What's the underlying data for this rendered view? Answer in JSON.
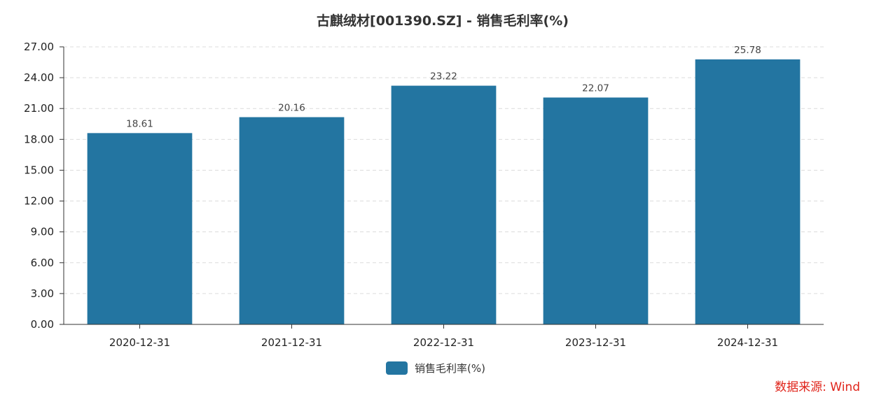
{
  "chart_data": {
    "type": "bar",
    "title": "古麒绒材[001390.SZ] - 销售毛利率(%)",
    "categories": [
      "2020-12-31",
      "2021-12-31",
      "2022-12-31",
      "2023-12-31",
      "2024-12-31"
    ],
    "series": [
      {
        "name": "销售毛利率(%)",
        "values": [
          18.61,
          20.16,
          23.22,
          22.07,
          25.78
        ],
        "color": "#2375a1"
      }
    ],
    "data_labels": [
      "18.61",
      "20.16",
      "23.22",
      "22.07",
      "25.78"
    ],
    "ylim": [
      0,
      27
    ],
    "yticks": [
      0,
      3,
      6,
      9,
      12,
      15,
      18,
      21,
      24,
      27
    ],
    "ytick_labels": [
      "0.00",
      "3.00",
      "6.00",
      "9.00",
      "12.00",
      "15.00",
      "18.00",
      "21.00",
      "24.00",
      "27.00"
    ],
    "grid": true,
    "legend_position": "bottom-center"
  },
  "source_text": "数据来源: Wind"
}
